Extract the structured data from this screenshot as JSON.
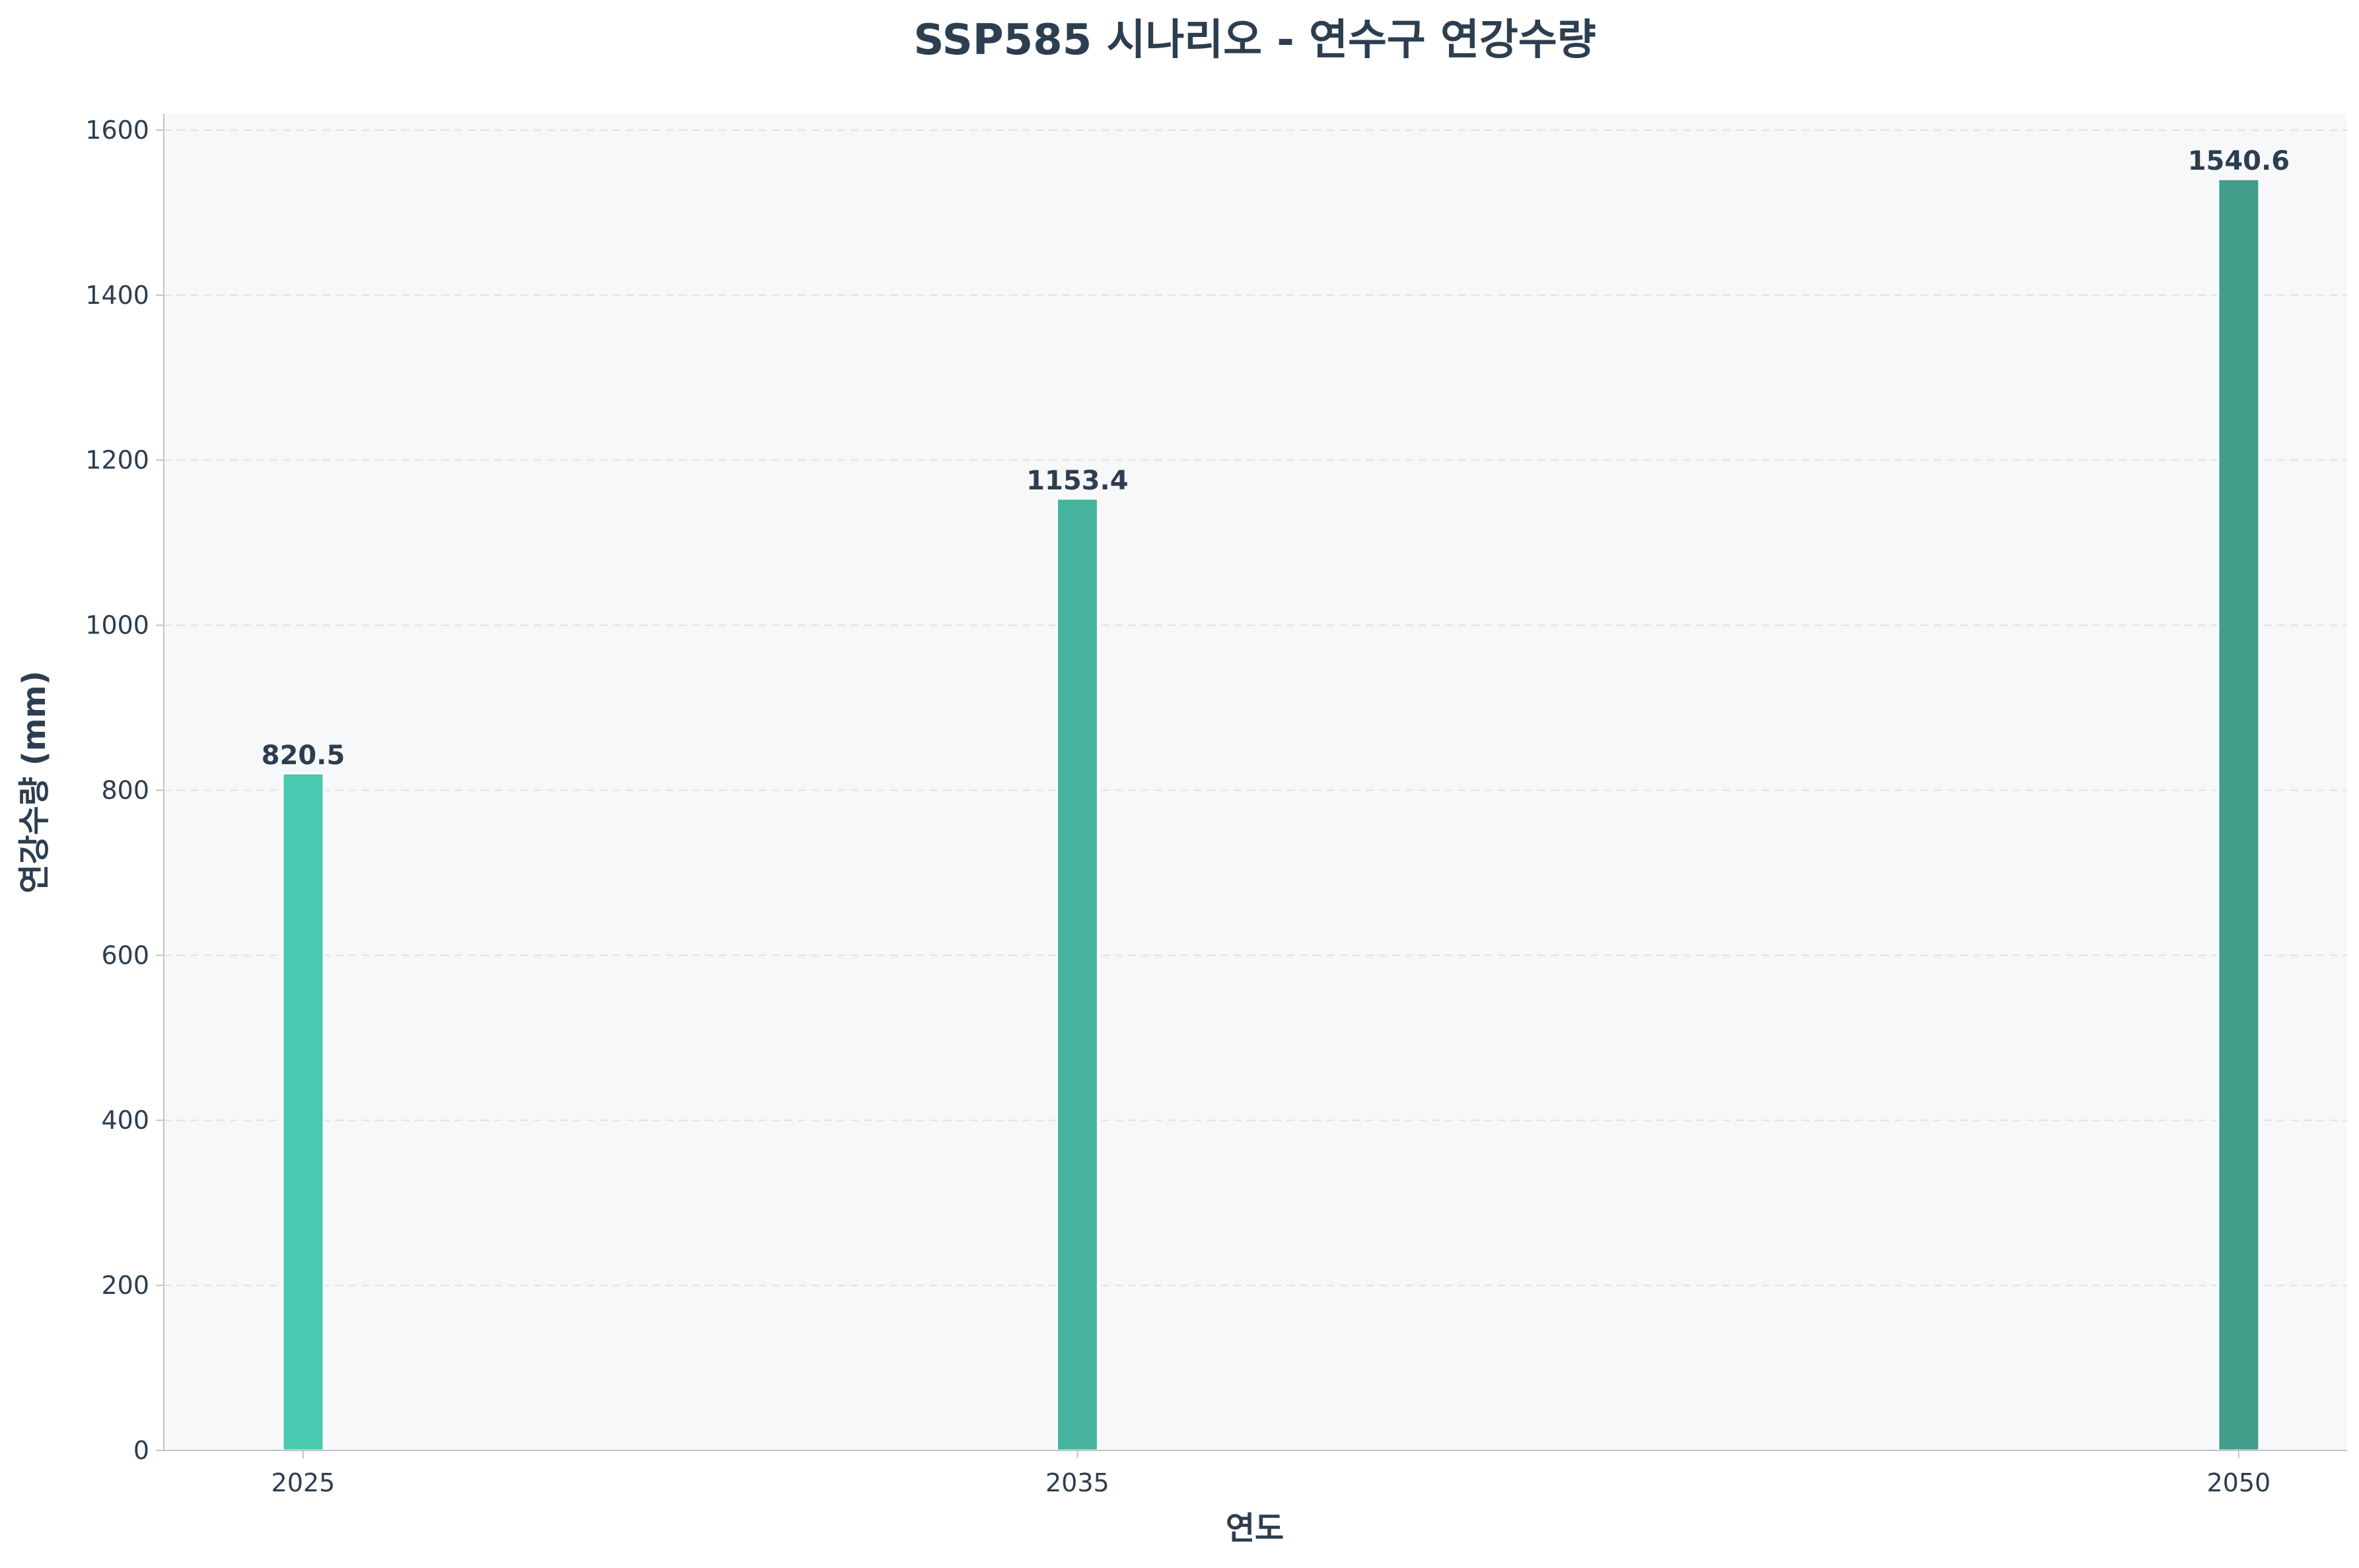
{
  "chart_data": {
    "type": "bar",
    "title": "SSP585 시나리오 - 연수구 연강수량",
    "xlabel": "연도",
    "ylabel": "연강수량 (mm)",
    "x": [
      2025,
      2035,
      2050
    ],
    "categories": [
      "2025",
      "2035",
      "2050"
    ],
    "values": [
      820.5,
      1153.4,
      1540.6
    ],
    "value_labels": [
      "820.5",
      "1153.4",
      "1540.6"
    ],
    "bar_colors": [
      "#48c9b0",
      "#45b39d",
      "#419d89"
    ],
    "xlim": [
      2023.2,
      2051.4
    ],
    "ylim": [
      0,
      1620
    ],
    "yticks": [
      0,
      200,
      400,
      600,
      800,
      1000,
      1200,
      1400,
      1600
    ],
    "grid": true,
    "legend": "none"
  },
  "colors": {
    "text": "#2c3e50",
    "plot_background": "#f7f8fa",
    "grid": "#dfe3e6",
    "axis": "#bfc4c8"
  }
}
